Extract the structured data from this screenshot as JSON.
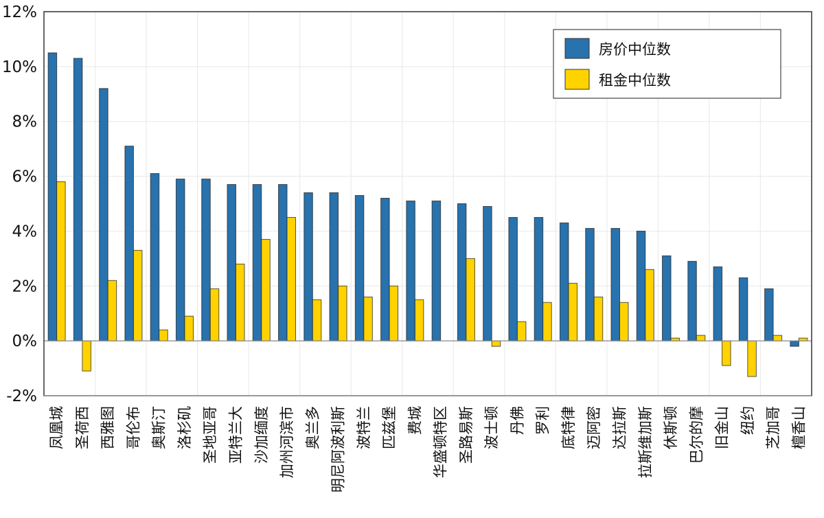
{
  "chart_data": {
    "type": "bar",
    "title": "",
    "xlabel": "",
    "ylabel": "",
    "ylim": [
      -2,
      12
    ],
    "yticks": [
      -2,
      0,
      2,
      4,
      6,
      8,
      10,
      12
    ],
    "ytick_labels": [
      "-2%",
      "0%",
      "2%",
      "4%",
      "6%",
      "8%",
      "10%",
      "12%"
    ],
    "grid": true,
    "legend_position": "top-right",
    "categories": [
      "凤凰城",
      "圣荷西",
      "西雅图",
      "哥伦布",
      "奥斯汀",
      "洛杉矶",
      "圣地亚哥",
      "亚特兰大",
      "沙加缅度",
      "加州河滨市",
      "奥兰多",
      "明尼阿波利斯",
      "波特兰",
      "匹兹堡",
      "费城",
      "华盛顿特区",
      "圣路易斯",
      "波士顿",
      "丹佛",
      "罗利",
      "底特律",
      "迈阿密",
      "达拉斯",
      "拉斯维加斯",
      "休斯顿",
      "巴尔的摩",
      "旧金山",
      "纽约",
      "芝加哥",
      "檀香山"
    ],
    "series": [
      {
        "name": "房价中位数",
        "color": "#2872ad",
        "values": [
          10.5,
          10.3,
          9.2,
          7.1,
          6.1,
          5.9,
          5.9,
          5.7,
          5.7,
          5.7,
          5.4,
          5.4,
          5.3,
          5.2,
          5.1,
          5.1,
          5.0,
          4.9,
          4.5,
          4.5,
          4.3,
          4.1,
          4.1,
          4.0,
          3.1,
          2.9,
          2.7,
          2.3,
          1.9,
          -0.2
        ]
      },
      {
        "name": "租金中位数",
        "color": "#ffd200",
        "values": [
          5.8,
          -1.1,
          2.2,
          3.3,
          0.4,
          0.9,
          1.9,
          2.8,
          3.7,
          4.5,
          1.5,
          2.0,
          1.6,
          2.0,
          1.5,
          0.0,
          3.0,
          -0.2,
          0.7,
          1.4,
          2.1,
          1.6,
          1.4,
          2.6,
          0.1,
          0.2,
          -0.9,
          -1.3,
          0.2,
          0.1
        ]
      }
    ]
  }
}
